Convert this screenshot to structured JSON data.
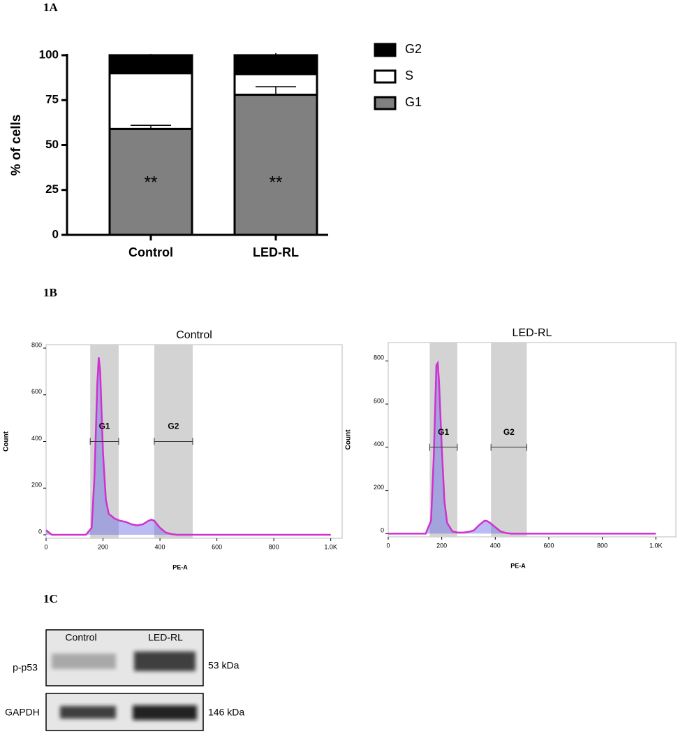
{
  "panel_labels": [
    "1A",
    "1B",
    "1C"
  ],
  "chart_data": [
    {
      "type": "bar",
      "stacked": true,
      "ylabel": "% of cells",
      "categories": [
        "Control",
        "LED-RL"
      ],
      "series": [
        {
          "name": "G1",
          "color": "#808080",
          "values": [
            59,
            78
          ],
          "errors": [
            2,
            4.5
          ]
        },
        {
          "name": "S",
          "color": "#ffffff",
          "values": [
            31,
            11.5
          ],
          "errors": [
            1.5,
            5
          ]
        },
        {
          "name": "G2",
          "color": "#000000",
          "values": [
            10,
            10.5
          ],
          "errors": [
            1,
            1.5
          ]
        }
      ],
      "annotations": [
        "**",
        "**"
      ],
      "ylim": [
        0,
        100
      ],
      "yticks": [
        0,
        25,
        50,
        75,
        100
      ],
      "legend": "right"
    },
    {
      "type": "area",
      "title": "Control",
      "xlabel": "PE-A",
      "ylabel": "Count",
      "color": "#d030d0",
      "x": [
        0,
        20,
        100,
        140,
        160,
        170,
        180,
        185,
        190,
        200,
        210,
        220,
        240,
        260,
        280,
        300,
        320,
        340,
        360,
        370,
        380,
        390,
        400,
        420,
        440,
        460,
        500,
        600,
        800,
        1000
      ],
      "values": [
        20,
        0,
        0,
        0,
        30,
        250,
        650,
        760,
        700,
        350,
        150,
        90,
        70,
        60,
        55,
        45,
        40,
        45,
        60,
        65,
        60,
        45,
        30,
        10,
        3,
        0,
        0,
        0,
        0,
        0
      ],
      "gates": [
        {
          "label": "G1",
          "range": [
            155,
            255
          ]
        },
        {
          "label": "G2",
          "range": [
            380,
            515
          ]
        }
      ],
      "xlim": [
        0,
        1040
      ],
      "ylim": [
        -15,
        815
      ],
      "xticks": [
        0,
        200,
        400,
        600,
        800,
        {
          "value": 1000,
          "label": "1.0K"
        }
      ],
      "yticks": [
        0,
        200,
        400,
        600,
        800
      ]
    },
    {
      "type": "area",
      "title": "LED-RL",
      "xlabel": "PE-A",
      "ylabel": "Count",
      "color": "#d030d0",
      "x": [
        0,
        20,
        100,
        140,
        160,
        170,
        180,
        185,
        190,
        200,
        210,
        220,
        240,
        260,
        280,
        300,
        320,
        340,
        360,
        370,
        380,
        390,
        400,
        420,
        440,
        460,
        500,
        600,
        800,
        1000
      ],
      "values": [
        0,
        0,
        0,
        0,
        60,
        350,
        780,
        790,
        700,
        400,
        150,
        50,
        10,
        5,
        5,
        8,
        15,
        40,
        60,
        58,
        50,
        40,
        30,
        10,
        3,
        0,
        0,
        0,
        0,
        0
      ],
      "gates": [
        {
          "label": "G1",
          "range": [
            155,
            258
          ]
        },
        {
          "label": "G2",
          "range": [
            384,
            518
          ]
        }
      ],
      "xlim": [
        0,
        1075
      ],
      "ylim": [
        -15,
        885
      ],
      "xticks": [
        0,
        200,
        400,
        600,
        800,
        {
          "value": 1000,
          "label": "1.0K"
        }
      ],
      "yticks": [
        0,
        200,
        400,
        600,
        800
      ]
    }
  ],
  "western_blot": {
    "lanes": [
      "Control",
      "LED-RL"
    ],
    "rows": [
      {
        "protein": "p-p53",
        "size": "53 kDa"
      },
      {
        "protein": "GAPDH",
        "size": "146 kDa"
      }
    ]
  }
}
